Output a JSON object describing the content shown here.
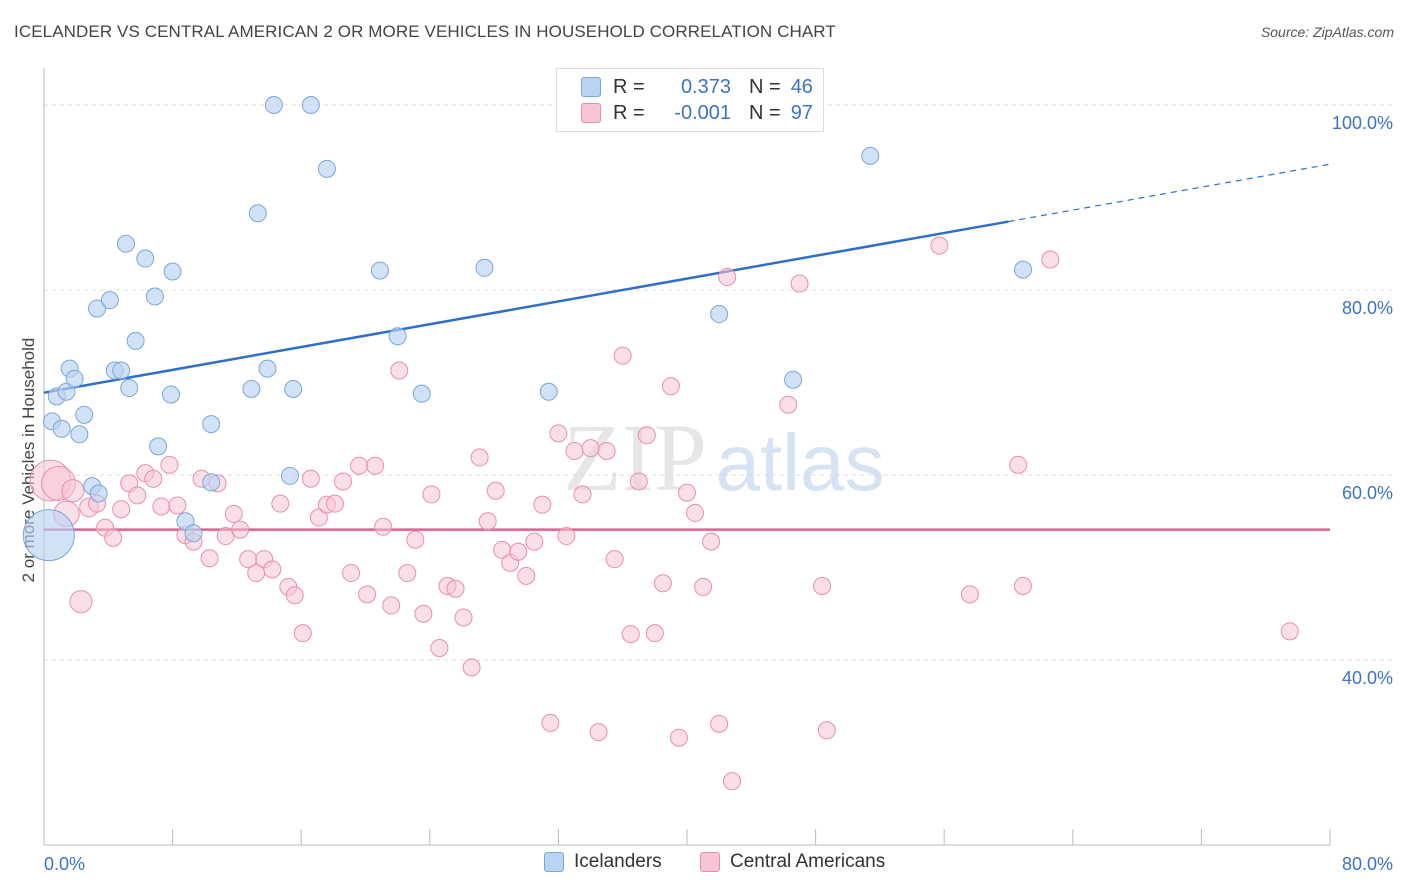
{
  "title": "ICELANDER VS CENTRAL AMERICAN 2 OR MORE VEHICLES IN HOUSEHOLD CORRELATION CHART",
  "source": "Source: ZipAtlas.com",
  "watermark": "ZIPatlas",
  "legend": {
    "rows": [
      {
        "r_label": "R =",
        "r_value": "0.373",
        "n_label": "N =",
        "n_value": "46"
      },
      {
        "r_label": "R =",
        "r_value": "-0.001",
        "n_label": "N =",
        "n_value": "97"
      }
    ]
  },
  "bottom_legend": [
    "Icelanders",
    "Central Americans"
  ],
  "colors": {
    "icelanders_fill": "#b9d3f2",
    "icelanders_stroke": "#7ba6da",
    "icelanders_line": "#2f6fcb",
    "central_fill": "#f7c5d4",
    "central_stroke": "#e88fac",
    "central_line": "#e0628a",
    "axis_text": "#3b74c4",
    "grid": "#dddddd"
  },
  "chart_data": {
    "type": "scatter",
    "title": "ICELANDER VS CENTRAL AMERICAN 2 OR MORE VEHICLES IN HOUSEHOLD CORRELATION CHART",
    "xlabel": "",
    "ylabel": "2 or more Vehicles in Household",
    "xlim": [
      0,
      80
    ],
    "ylim": [
      20,
      104
    ],
    "x_tick_labels": [
      "0.0%",
      "80.0%"
    ],
    "y_tick_labels": [
      "40.0%",
      "60.0%",
      "80.0%",
      "100.0%"
    ],
    "y_ticks": [
      40,
      60,
      80,
      100
    ],
    "grid": true,
    "legend_position": "top-center",
    "series": [
      {
        "name": "Icelanders",
        "r": 0.373,
        "n": 46,
        "trend": {
          "x0": 0,
          "y0": 68.9,
          "x1": 60,
          "y1": 87.4,
          "dashed_to_x": 80,
          "dashed_to_y": 93.6
        },
        "points": [
          [
            0.3,
            53.5,
            3.0
          ],
          [
            0.5,
            65.8,
            1
          ],
          [
            0.8,
            68.5,
            1
          ],
          [
            1.1,
            65.0,
            1
          ],
          [
            1.4,
            69.0,
            1
          ],
          [
            1.6,
            71.5,
            1
          ],
          [
            1.9,
            70.4,
            1
          ],
          [
            2.2,
            64.4,
            1
          ],
          [
            2.5,
            66.5,
            1
          ],
          [
            3.0,
            58.8,
            1
          ],
          [
            3.3,
            78.0,
            1
          ],
          [
            3.4,
            58.0,
            1
          ],
          [
            4.1,
            78.9,
            1
          ],
          [
            4.4,
            71.3,
            1
          ],
          [
            4.8,
            71.3,
            1
          ],
          [
            5.1,
            85.0,
            1
          ],
          [
            5.3,
            69.4,
            1
          ],
          [
            5.7,
            74.5,
            1
          ],
          [
            6.3,
            83.4,
            1
          ],
          [
            6.9,
            79.3,
            1
          ],
          [
            7.1,
            63.1,
            1
          ],
          [
            7.9,
            68.7,
            1
          ],
          [
            8.0,
            82.0,
            1
          ],
          [
            8.8,
            55.0,
            1
          ],
          [
            9.3,
            53.7,
            1
          ],
          [
            10.4,
            59.2,
            1
          ],
          [
            10.4,
            65.5,
            1
          ],
          [
            12.9,
            69.3,
            1
          ],
          [
            13.3,
            88.3,
            1
          ],
          [
            13.9,
            71.5,
            1
          ],
          [
            14.3,
            100.0,
            1
          ],
          [
            15.3,
            59.9,
            1
          ],
          [
            15.5,
            69.3,
            1
          ],
          [
            16.6,
            100.0,
            1
          ],
          [
            17.6,
            93.1,
            1
          ],
          [
            20.9,
            82.1,
            1
          ],
          [
            22.0,
            75.0,
            1
          ],
          [
            23.5,
            68.8,
            1
          ],
          [
            27.4,
            82.4,
            1
          ],
          [
            31.4,
            69.0,
            1
          ],
          [
            42.0,
            77.4,
            1
          ],
          [
            46.6,
            70.3,
            1
          ],
          [
            51.4,
            94.5,
            1
          ],
          [
            60.9,
            82.2,
            1
          ]
        ]
      },
      {
        "name": "Central Americans",
        "r": -0.001,
        "n": 97,
        "trend": {
          "x0": 0,
          "y0": 54.1,
          "x1": 80,
          "y1": 54.1
        },
        "points": [
          [
            0.4,
            59.4,
            2.4
          ],
          [
            0.9,
            59.1,
            2.0
          ],
          [
            1.4,
            55.8,
            1.5
          ],
          [
            1.8,
            58.3,
            1.3
          ],
          [
            2.3,
            46.3,
            1.3
          ],
          [
            2.8,
            56.5,
            1.1
          ],
          [
            3.3,
            56.9,
            1
          ],
          [
            3.8,
            54.3,
            1
          ],
          [
            4.3,
            53.2,
            1
          ],
          [
            4.8,
            56.3,
            1
          ],
          [
            5.3,
            59.1,
            1
          ],
          [
            5.8,
            57.8,
            1
          ],
          [
            6.3,
            60.2,
            1
          ],
          [
            6.8,
            59.6,
            1
          ],
          [
            7.3,
            56.6,
            1
          ],
          [
            7.8,
            61.1,
            1
          ],
          [
            8.3,
            56.7,
            1
          ],
          [
            8.8,
            53.5,
            1
          ],
          [
            9.3,
            52.8,
            1
          ],
          [
            9.8,
            59.6,
            1
          ],
          [
            10.3,
            51.0,
            1
          ],
          [
            10.8,
            59.1,
            1
          ],
          [
            11.3,
            53.4,
            1
          ],
          [
            11.8,
            55.8,
            1
          ],
          [
            12.2,
            54.1,
            1
          ],
          [
            12.7,
            50.9,
            1
          ],
          [
            13.2,
            49.4,
            1
          ],
          [
            13.7,
            50.9,
            1
          ],
          [
            14.2,
            49.8,
            1
          ],
          [
            14.7,
            56.9,
            1
          ],
          [
            15.2,
            47.9,
            1
          ],
          [
            15.6,
            47.0,
            1
          ],
          [
            16.1,
            42.9,
            1
          ],
          [
            16.6,
            59.6,
            1
          ],
          [
            17.1,
            55.4,
            1
          ],
          [
            17.6,
            56.8,
            1
          ],
          [
            18.1,
            56.9,
            1
          ],
          [
            18.6,
            59.3,
            1
          ],
          [
            19.1,
            49.4,
            1
          ],
          [
            19.6,
            61.0,
            1
          ],
          [
            20.1,
            47.1,
            1
          ],
          [
            20.6,
            61.0,
            1
          ],
          [
            21.1,
            54.4,
            1
          ],
          [
            21.6,
            45.9,
            1
          ],
          [
            22.1,
            71.3,
            1
          ],
          [
            22.6,
            49.4,
            1
          ],
          [
            23.1,
            53.0,
            1
          ],
          [
            23.6,
            45.0,
            1
          ],
          [
            24.1,
            57.9,
            1
          ],
          [
            24.6,
            41.3,
            1
          ],
          [
            25.1,
            48.0,
            1
          ],
          [
            25.6,
            47.7,
            1
          ],
          [
            26.1,
            44.6,
            1
          ],
          [
            26.6,
            39.2,
            1
          ],
          [
            27.1,
            61.9,
            1
          ],
          [
            27.6,
            55.0,
            1
          ],
          [
            28.1,
            58.3,
            1
          ],
          [
            28.5,
            51.9,
            1
          ],
          [
            29.0,
            50.5,
            1
          ],
          [
            29.5,
            51.7,
            1
          ],
          [
            30.0,
            49.1,
            1
          ],
          [
            30.5,
            52.8,
            1
          ],
          [
            31.0,
            56.8,
            1
          ],
          [
            31.5,
            33.2,
            1
          ],
          [
            32.0,
            64.5,
            1
          ],
          [
            32.5,
            53.4,
            1
          ],
          [
            33.0,
            62.6,
            1
          ],
          [
            33.5,
            57.9,
            1
          ],
          [
            34.0,
            62.9,
            1
          ],
          [
            34.5,
            32.2,
            1
          ],
          [
            35.0,
            62.6,
            1
          ],
          [
            35.5,
            50.9,
            1
          ],
          [
            36.0,
            72.9,
            1
          ],
          [
            36.5,
            42.8,
            1
          ],
          [
            37.0,
            59.3,
            1
          ],
          [
            37.5,
            64.3,
            1
          ],
          [
            38.0,
            42.9,
            1
          ],
          [
            38.5,
            48.3,
            1
          ],
          [
            39.0,
            69.6,
            1
          ],
          [
            39.5,
            31.6,
            1
          ],
          [
            40.0,
            58.1,
            1
          ],
          [
            40.5,
            55.9,
            1
          ],
          [
            41.0,
            47.9,
            1
          ],
          [
            41.5,
            52.8,
            1
          ],
          [
            42.0,
            33.1,
            1
          ],
          [
            42.5,
            81.4,
            1
          ],
          [
            42.8,
            26.9,
            1
          ],
          [
            46.3,
            67.6,
            1
          ],
          [
            47.0,
            80.7,
            1
          ],
          [
            48.4,
            48.0,
            1
          ],
          [
            48.7,
            32.4,
            1
          ],
          [
            55.7,
            84.8,
            1
          ],
          [
            57.6,
            47.1,
            1
          ],
          [
            60.6,
            61.1,
            1
          ],
          [
            60.9,
            48.0,
            1
          ],
          [
            62.6,
            83.3,
            1
          ],
          [
            77.5,
            43.1,
            1
          ]
        ]
      }
    ]
  }
}
